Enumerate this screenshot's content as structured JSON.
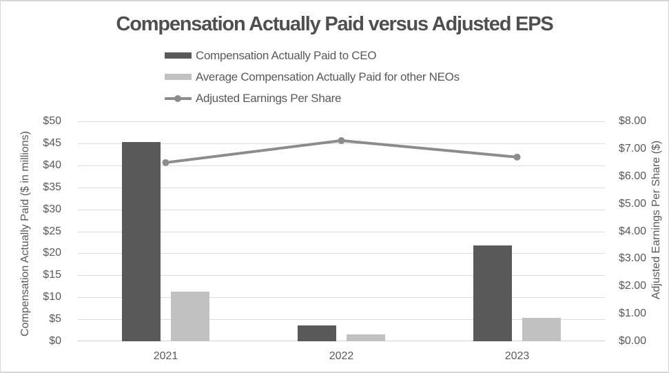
{
  "chart_data": {
    "type": "bar",
    "subtype": "grouped-bar-with-line-combo",
    "title": "Compensation Actually Paid versus Adjusted EPS",
    "categories": [
      "2021",
      "2022",
      "2023"
    ],
    "series": [
      {
        "name": "Compensation Actually Paid to CEO",
        "type": "bar",
        "axis": "left",
        "color": "#595959",
        "values": [
          45.3,
          3.6,
          21.8
        ]
      },
      {
        "name": "Average Compensation Actually Paid for other NEOs",
        "type": "bar",
        "axis": "left",
        "color": "#c1c1c1",
        "values": [
          11.3,
          1.6,
          5.3
        ]
      },
      {
        "name": "Adjusted Earnings Per Share",
        "type": "line",
        "axis": "right",
        "color": "#8c8c8c",
        "values": [
          6.5,
          7.3,
          6.7
        ]
      }
    ],
    "ylabel_left": "Compensation  Actually Paid ($ in millions)",
    "ylabel_right": "Adjusted Earnings Per Share ($)",
    "axis_left": {
      "min": 0,
      "max": 50,
      "step": 5,
      "tick_labels": [
        "$0",
        "$5",
        "$10",
        "$15",
        "$20",
        "$25",
        "$30",
        "$35",
        "$40",
        "$45",
        "$50"
      ]
    },
    "axis_right": {
      "min": 0,
      "max": 8,
      "step": 1,
      "tick_labels": [
        "$0.00",
        "$1.00",
        "$2.00",
        "$3.00",
        "$4.00",
        "$5.00",
        "$6.00",
        "$7.00",
        "$8.00"
      ]
    },
    "grid": true,
    "legend_position": "top-left-stacked",
    "colors": {
      "title_text": "#4f4f4f",
      "axis_text": "#595959",
      "gridline": "#dcdcdc",
      "baseline": "#d0d0d0",
      "frame_border": "#d6d6d6"
    }
  }
}
